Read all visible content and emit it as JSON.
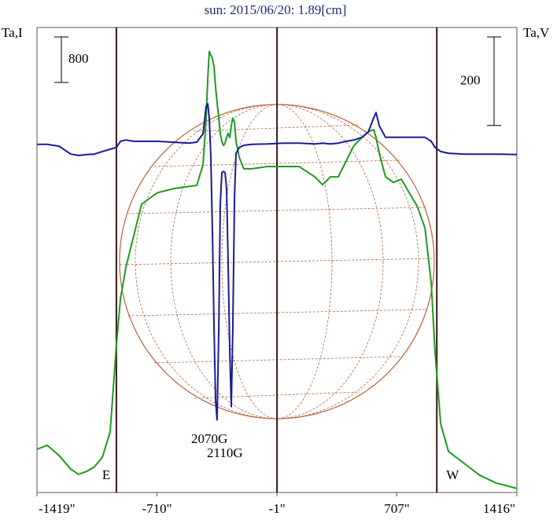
{
  "chart_data": {
    "type": "line",
    "title": "sun: 2015/06/20: 1.89[cm]",
    "y_label": "Ta,I",
    "y2_label": "Ta,V",
    "i_scale": 800,
    "v_scale": 200,
    "x": [
      -1419,
      -1359,
      -1289,
      -1219,
      -1173,
      -1126,
      -1080,
      -1033,
      -987,
      -950,
      -926,
      -894,
      -847,
      -801,
      -708,
      -615,
      -522,
      -475,
      -438,
      -420,
      -410,
      -401,
      -392,
      -382,
      -373,
      -364,
      -355,
      -345,
      -336,
      -327,
      -317,
      -308,
      -299,
      -290,
      -280,
      -271,
      -262,
      -252,
      -243,
      -224,
      -197,
      -150,
      -57,
      36,
      129,
      222,
      268,
      315,
      361,
      408,
      454,
      501,
      538,
      570,
      584,
      603,
      640,
      687,
      733,
      780,
      826,
      873,
      910,
      933,
      966,
      1012,
      1105,
      1198,
      1291,
      1416
    ],
    "series": [
      {
        "name": "I",
        "color": "#1e9b1e",
        "values": [
          760,
          830,
          650,
          410,
          320,
          370,
          450,
          620,
          1060,
          2580,
          3400,
          3950,
          4510,
          5060,
          5260,
          5330,
          5370,
          5390,
          5750,
          6570,
          7260,
          7740,
          7680,
          7610,
          7470,
          7120,
          6850,
          6570,
          6300,
          6160,
          6090,
          6130,
          6230,
          6300,
          6230,
          6440,
          6570,
          6500,
          6160,
          5880,
          5680,
          5680,
          5720,
          5720,
          5720,
          5540,
          5400,
          5540,
          5540,
          5820,
          6090,
          6230,
          6330,
          6370,
          6230,
          5950,
          5540,
          5440,
          5500,
          5260,
          5030,
          4640,
          3680,
          2440,
          1200,
          720,
          510,
          300,
          170,
          70
        ]
      },
      {
        "name": "V",
        "color": "#1a1a9c",
        "axis": "y2",
        "values": [
          11,
          11,
          7,
          -11,
          -14,
          -12,
          -11,
          -5,
          0,
          4,
          18,
          21,
          18,
          18,
          18,
          16,
          14,
          16,
          35,
          97,
          103,
          71,
          -18,
          -195,
          -407,
          -566,
          -611,
          -407,
          -124,
          -53,
          -50,
          -53,
          -89,
          -248,
          -460,
          -581,
          -407,
          -106,
          -9,
          4,
          9,
          11,
          12,
          14,
          14,
          12,
          14,
          12,
          14,
          18,
          21,
          27,
          39,
          71,
          83,
          53,
          27,
          27,
          27,
          27,
          27,
          27,
          18,
          4,
          -5,
          -9,
          -11,
          -11,
          -11,
          -12
        ]
      }
    ],
    "xlim": [
      -1419,
      1416
    ],
    "xticks": [
      {
        "value": -1419,
        "label": "-1419\""
      },
      {
        "value": -710,
        "label": "-710\""
      },
      {
        "value": -1,
        "label": "-1\""
      },
      {
        "value": 707,
        "label": "707\""
      },
      {
        "value": 1416,
        "label": "1416\""
      }
    ],
    "ylim": [
      0,
      8160
    ],
    "y2lim": [
      -775,
      275
    ],
    "limbs": [
      {
        "label": "E",
        "x": -950
      },
      {
        "label": "W",
        "x": 943
      }
    ],
    "annotations": [
      "2070G",
      "2110G"
    ]
  }
}
